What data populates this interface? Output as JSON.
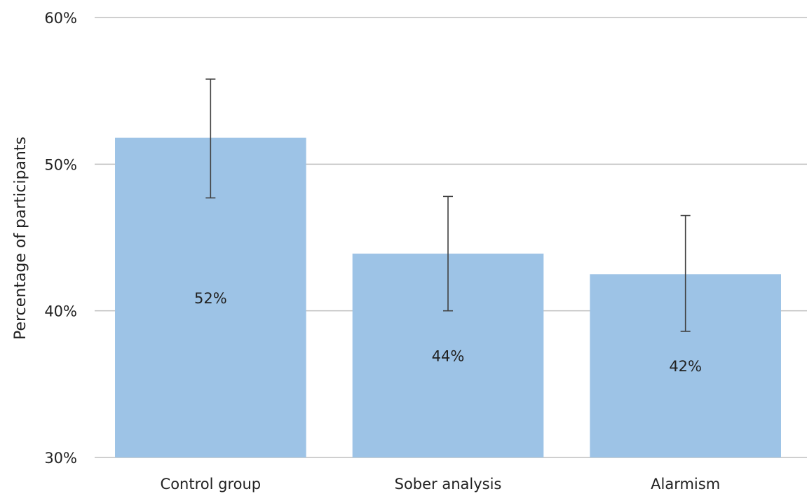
{
  "chart_data": {
    "type": "bar",
    "categories": [
      "Control group",
      "Sober analysis",
      "Alarmism"
    ],
    "values": [
      51.8,
      43.9,
      42.5
    ],
    "data_labels": [
      "52%",
      "44%",
      "42%"
    ],
    "error_bars": [
      {
        "low": 47.7,
        "high": 55.8
      },
      {
        "low": 40.0,
        "high": 47.8
      },
      {
        "low": 38.6,
        "high": 46.5
      }
    ],
    "title": "",
    "xlabel": "",
    "ylabel": "Percentage of participants",
    "ylim": [
      30,
      60
    ],
    "yticks": [
      30,
      40,
      50,
      60
    ],
    "ytick_labels": [
      "30%",
      "40%",
      "50%",
      "60%"
    ],
    "grid": true,
    "legend": "none",
    "colors": {
      "bar": "#9dc3e6",
      "grid": "#bfbfbf",
      "error_bar": "#404040",
      "text": "#222222"
    }
  }
}
